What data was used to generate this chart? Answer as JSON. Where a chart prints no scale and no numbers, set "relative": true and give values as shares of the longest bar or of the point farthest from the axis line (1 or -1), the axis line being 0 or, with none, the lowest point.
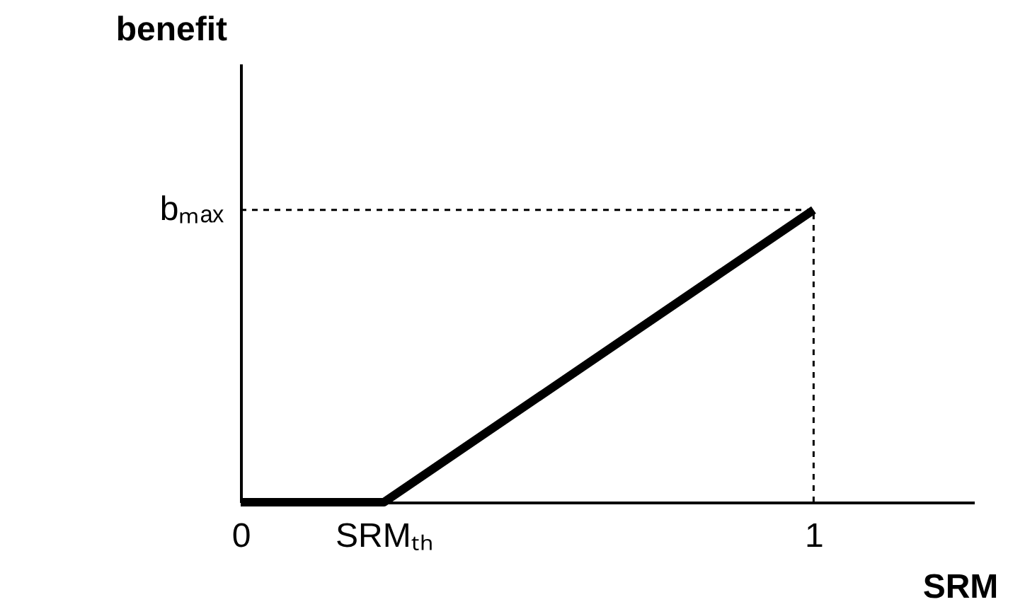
{
  "chart_data": {
    "type": "line",
    "xlabel": "SRM",
    "ylabel": "benefit",
    "relative": true,
    "x": [
      0,
      0.25,
      1
    ],
    "series": [
      {
        "color": "#000000",
        "values": [
          0,
          0,
          1
        ]
      },
      {
        "color": "#000000",
        "values": [
          1,
          1,
          1
        ],
        "line_style": "dashed"
      },
      {
        "color": "#000000",
        "x": [
          1,
          1
        ],
        "values": [
          0,
          1
        ],
        "line_style": "dashed"
      }
    ],
    "xlim": [
      0,
      1.28
    ],
    "xticks": [
      0,
      {
        "value": 0.25,
        "label": "SRMₜₕ"
      },
      1
    ],
    "annotations": [
      {
        "text": "bₘₐₓ",
        "x": 0,
        "y": 1
      }
    ],
    "grid": false,
    "marker": "none",
    "line_style": "solid"
  }
}
